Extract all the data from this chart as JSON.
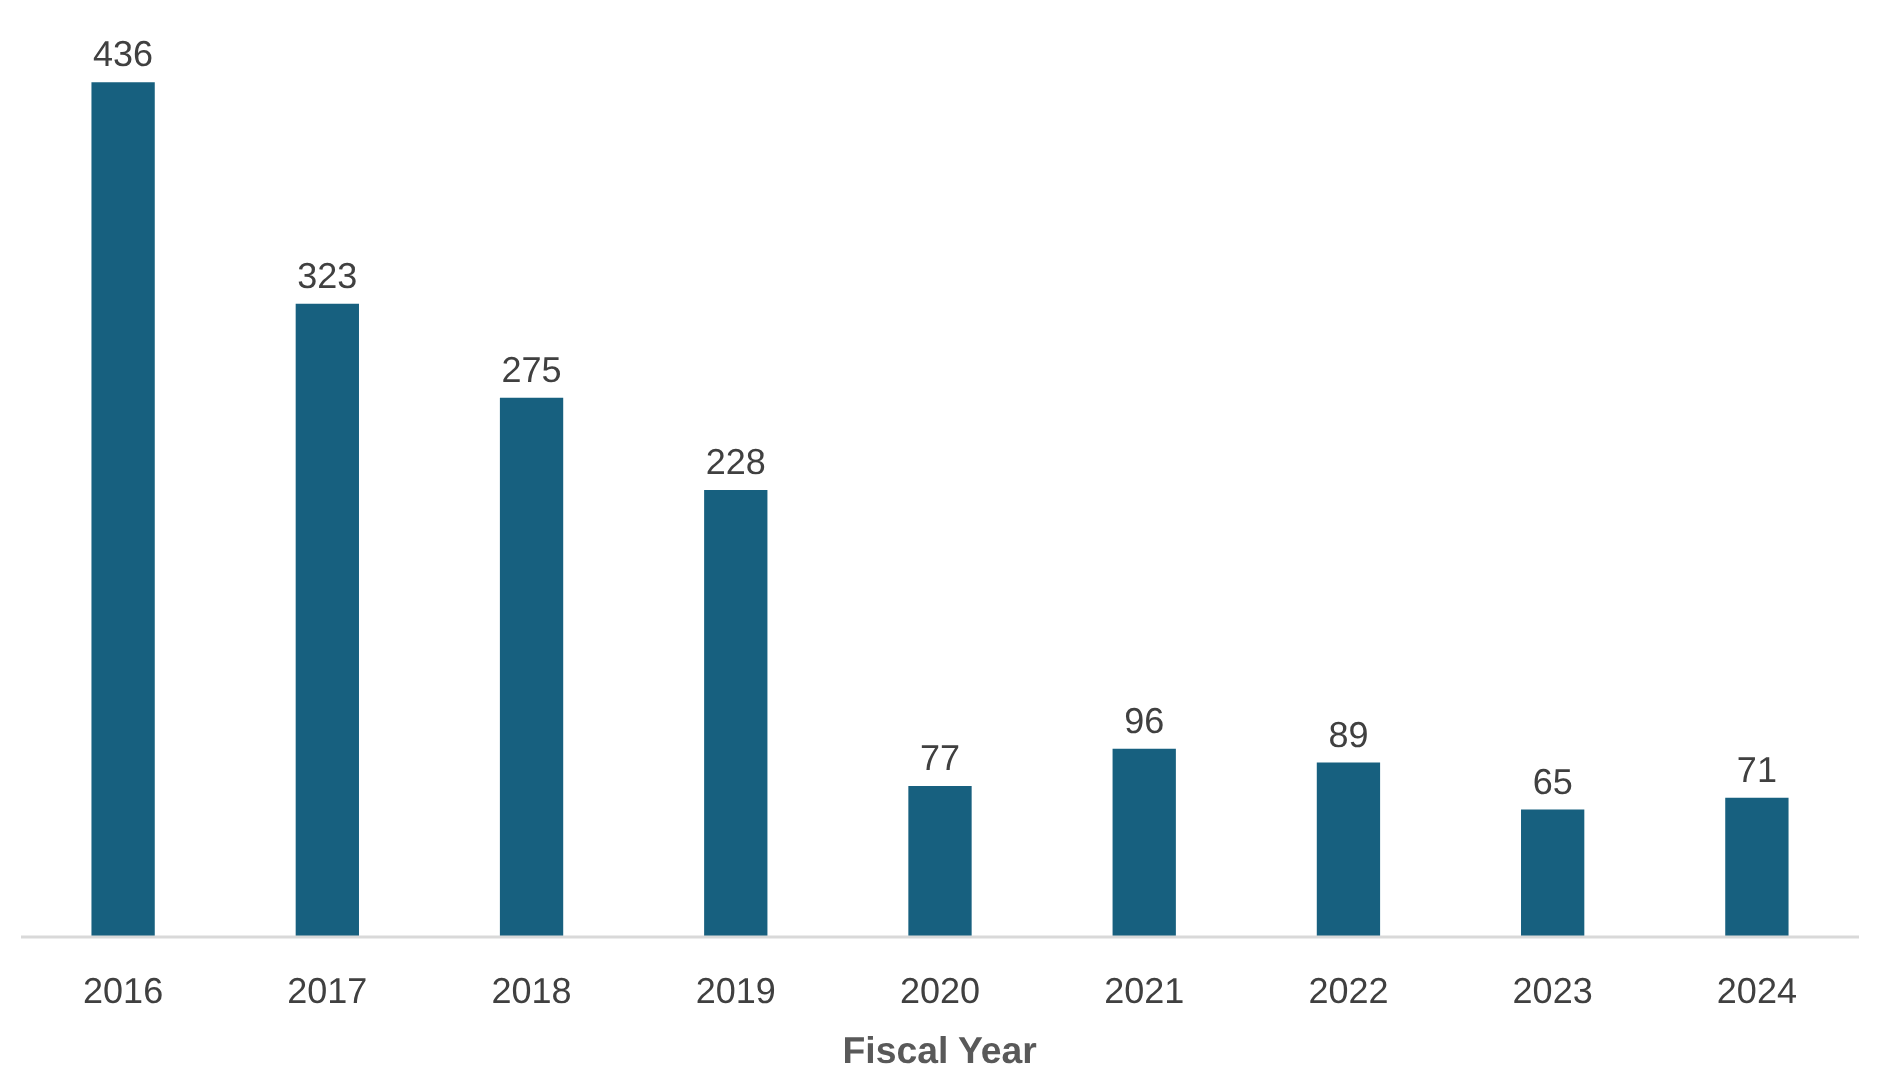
{
  "chart_data": {
    "type": "bar",
    "xlabel": "Fiscal Year",
    "categories": [
      "2016",
      "2017",
      "2018",
      "2019",
      "2020",
      "2021",
      "2022",
      "2023",
      "2024"
    ],
    "values": [
      436,
      323,
      275,
      228,
      77,
      96,
      89,
      65,
      71
    ],
    "color": "#17607f",
    "data_labels": true
  }
}
